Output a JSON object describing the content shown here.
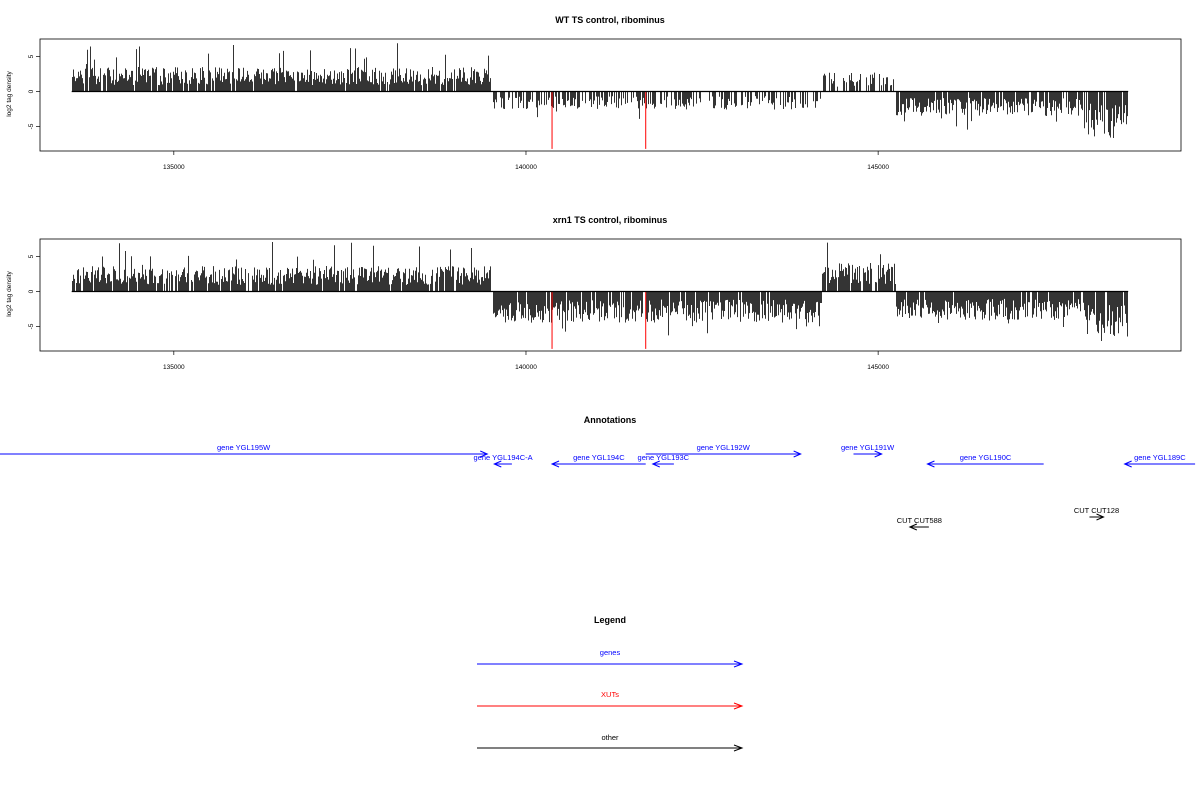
{
  "chart_data": [
    {
      "type": "bar",
      "title": "WT TS control, ribominus",
      "xlabel": "",
      "ylabel": "log2 tag density",
      "xlim": [
        133100,
        149300
      ],
      "ylim": [
        -8.5,
        7.5
      ],
      "yticks": [
        -5,
        0,
        5
      ],
      "xticks": [
        135000,
        140000,
        145000
      ],
      "x_tick_labels": [
        "135000",
        "140000",
        "145000"
      ],
      "y_tick_labels": [
        "-5",
        "0",
        "5"
      ],
      "grid": false,
      "positive_color": "#000000",
      "highlight_color": "#ff0000",
      "data_range": [
        133550,
        148550
      ],
      "segments": [
        {
          "x0": 133550,
          "x1": 139500,
          "mean": 2.6,
          "max": 7.2
        },
        {
          "x0": 139500,
          "x1": 144200,
          "mean": -1.9,
          "max": 4.2
        },
        {
          "x0": 144200,
          "x1": 145250,
          "mean": 2.0,
          "max": 3.5
        },
        {
          "x0": 145250,
          "x1": 147950,
          "mean": -2.6,
          "max": 5.5
        },
        {
          "x0": 147950,
          "x1": 148550,
          "mean": -5.0,
          "max": 8.0
        }
      ],
      "highlights": [
        {
          "x": 140370,
          "y": -8.2
        },
        {
          "x": 141700,
          "y": -8.2
        }
      ]
    },
    {
      "type": "bar",
      "title": "xrn1 TS control, ribominus",
      "xlabel": "",
      "ylabel": "log2 tag density",
      "xlim": [
        133100,
        149300
      ],
      "ylim": [
        -8.5,
        7.5
      ],
      "yticks": [
        -5,
        0,
        5
      ],
      "xticks": [
        135000,
        140000,
        145000
      ],
      "x_tick_labels": [
        "135000",
        "140000",
        "145000"
      ],
      "y_tick_labels": [
        "-5",
        "0",
        "5"
      ],
      "grid": false,
      "positive_color": "#000000",
      "highlight_color": "#ff0000",
      "data_range": [
        133550,
        148550
      ],
      "segments": [
        {
          "x0": 133550,
          "x1": 139500,
          "mean": 2.7,
          "max": 7.2
        },
        {
          "x0": 139500,
          "x1": 144200,
          "mean": -3.3,
          "max": 7.0
        },
        {
          "x0": 144200,
          "x1": 145250,
          "mean": 3.0,
          "max": 7.3
        },
        {
          "x0": 145250,
          "x1": 147950,
          "mean": -3.0,
          "max": 5.3
        },
        {
          "x0": 147950,
          "x1": 148550,
          "mean": -5.0,
          "max": 8.0
        }
      ],
      "highlights": [
        {
          "x": 140370,
          "y": -8.2
        },
        {
          "x": 141700,
          "y": -8.2
        }
      ]
    }
  ],
  "annotations": {
    "title": "Annotations",
    "gene_color": "#0000ff",
    "other_color": "#000000",
    "xlim": [
      133100,
      149300
    ],
    "features": [
      {
        "label": "gene YGL195W",
        "start": 132200,
        "end": 139450,
        "strand": "+",
        "row": 0,
        "kind": "gene"
      },
      {
        "label": "gene YGL194C-A",
        "start": 139550,
        "end": 139800,
        "strand": "-",
        "row": 1,
        "kind": "gene"
      },
      {
        "label": "gene YGL194C",
        "start": 140370,
        "end": 141700,
        "strand": "-",
        "row": 1,
        "kind": "gene"
      },
      {
        "label": "gene YGL193C",
        "start": 141800,
        "end": 142100,
        "strand": "-",
        "row": 1,
        "kind": "gene"
      },
      {
        "label": "gene YGL192W",
        "start": 141700,
        "end": 143900,
        "strand": "+",
        "row": 0,
        "kind": "gene"
      },
      {
        "label": "gene YGL191W",
        "start": 144650,
        "end": 145050,
        "strand": "+",
        "row": 0,
        "kind": "gene"
      },
      {
        "label": "gene YGL190C",
        "start": 145700,
        "end": 147350,
        "strand": "-",
        "row": 1,
        "kind": "gene"
      },
      {
        "label": "gene YGL189C",
        "start": 148500,
        "end": 149500,
        "strand": "-",
        "row": 1,
        "kind": "gene"
      },
      {
        "label": "CUT CUT588",
        "start": 145450,
        "end": 145720,
        "strand": "-",
        "row": 3,
        "kind": "other"
      },
      {
        "label": "CUT CUT128",
        "start": 148000,
        "end": 148200,
        "strand": "+",
        "row": 2,
        "kind": "other"
      }
    ]
  },
  "legend": {
    "title": "Legend",
    "items": [
      {
        "label": "genes",
        "color": "#0000ff"
      },
      {
        "label": "XUTs",
        "color": "#ff0000"
      },
      {
        "label": "other",
        "color": "#000000"
      }
    ]
  }
}
